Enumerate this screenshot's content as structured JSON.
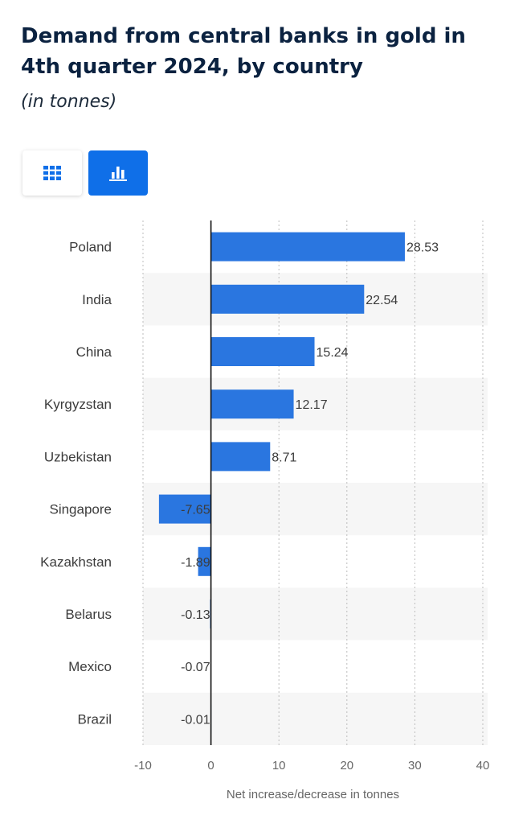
{
  "title": "Demand from central banks in gold in 4th quarter 2024, by country",
  "subtitle": "(in tonnes)",
  "view_toggle": {
    "table_icon": "grid-icon",
    "chart_icon": "bar-chart-icon",
    "active": "chart"
  },
  "colors": {
    "bar": "#2a76e0",
    "title": "#0b2240",
    "toggle_active": "#0f6fe8",
    "band": "#f6f6f6"
  },
  "chart_data": {
    "type": "bar",
    "orientation": "horizontal",
    "categories": [
      "Poland",
      "India",
      "China",
      "Kyrgyzstan",
      "Uzbekistan",
      "Singapore",
      "Kazakhstan",
      "Belarus",
      "Mexico",
      "Brazil"
    ],
    "values": [
      28.53,
      22.54,
      15.24,
      12.17,
      8.71,
      -7.65,
      -1.89,
      -0.13,
      -0.07,
      -0.01
    ],
    "value_labels": [
      "28.53",
      "22.54",
      "15.24",
      "12.17",
      "8.71",
      "-7.65",
      "-1.89",
      "-0.13",
      "-0.07",
      "-0.01"
    ],
    "xlabel": "Net increase/decrease in tonnes",
    "ylabel": "",
    "xlim": [
      -10,
      40
    ],
    "xticks": [
      -10,
      0,
      10,
      20,
      30,
      40
    ],
    "grid": "vertical dotted",
    "legend": "none"
  }
}
